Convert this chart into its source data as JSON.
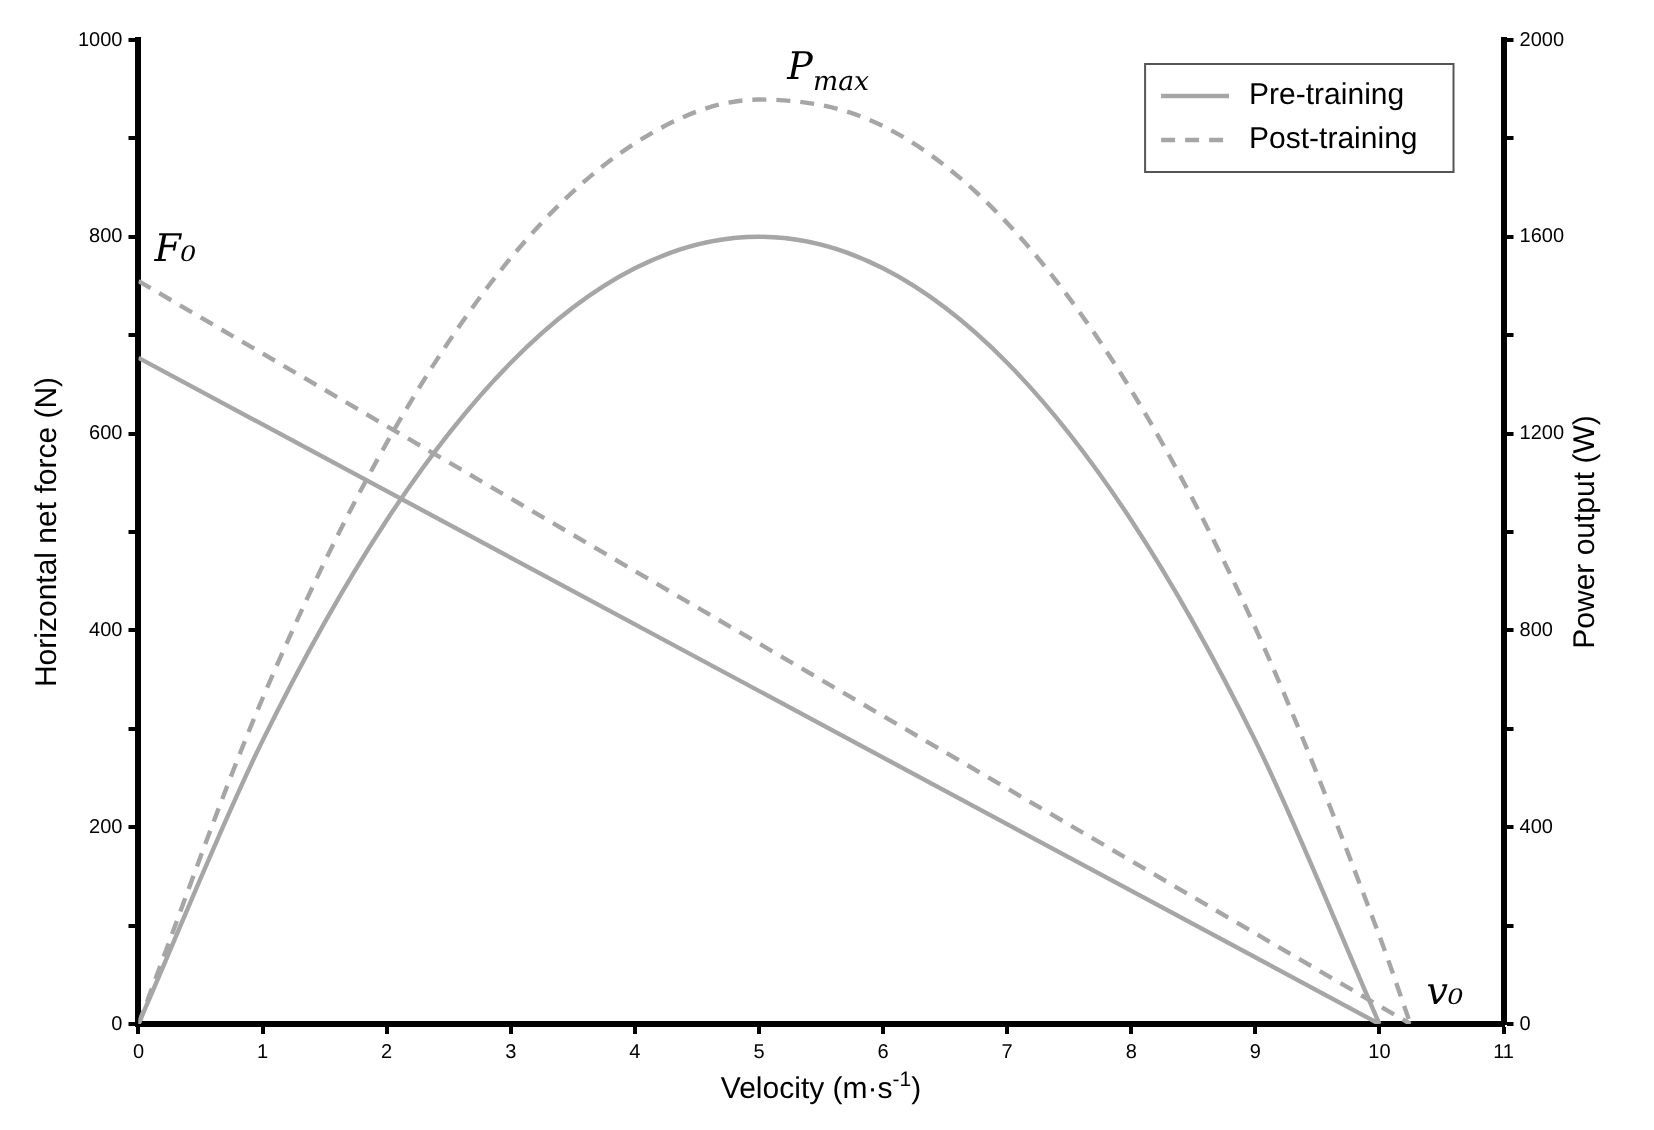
{
  "chart_data": {
    "type": "line",
    "xlabel": "Velocity (m·s$^{-1}$)",
    "ylabel": "Horizontal net force (N)",
    "y2label": "Power output (W)",
    "series": [
      {
        "name": "Pre-training",
        "color": "#a6a6a6",
        "line_style": "solid",
        "x": [
          0,
          10
        ],
        "values": [
          677,
          0
        ]
      },
      {
        "name": "Post-training",
        "color": "#a6a6a6",
        "line_style": "dashed",
        "x": [
          0,
          10.25
        ],
        "values": [
          755,
          0
        ]
      },
      {
        "color": "#a6a6a6",
        "line_style": "solid",
        "axis": "y2",
        "x": [
          0,
          1,
          2,
          3,
          4,
          5,
          6,
          7,
          8,
          9,
          10
        ],
        "values": [
          0,
          576,
          1024,
          1344,
          1536,
          1600,
          1536,
          1344,
          1024,
          576,
          0
        ]
      },
      {
        "color": "#a6a6a6",
        "line_style": "dashed",
        "axis": "y2",
        "x": [
          0,
          1,
          2,
          3,
          4,
          5,
          6,
          7,
          8,
          9,
          10,
          10.25
        ],
        "values": [
          0,
          662,
          1181,
          1557,
          1790,
          1879,
          1825,
          1628,
          1288,
          805,
          179,
          0
        ]
      }
    ],
    "xlim": [
      0,
      11
    ],
    "xticks": [
      0,
      1,
      2,
      3,
      4,
      5,
      6,
      7,
      8,
      9,
      10,
      11
    ],
    "ylim": [
      0,
      1000
    ],
    "yticks": [
      0,
      {
        "value": 100,
        "label": null
      },
      200,
      {
        "value": 300,
        "label": null
      },
      400,
      {
        "value": 500,
        "label": null
      },
      600,
      {
        "value": 700,
        "label": null
      },
      800,
      {
        "value": 900,
        "label": null
      },
      1000
    ],
    "y2lim": [
      0,
      2000
    ],
    "y2ticks": [
      0,
      {
        "value": 200,
        "label": null
      },
      400,
      {
        "value": 600,
        "label": null
      },
      800,
      {
        "value": 1000,
        "label": null
      },
      1200,
      {
        "value": 1400,
        "label": null
      },
      1600,
      {
        "value": 1800,
        "label": null
      },
      2000
    ],
    "annotations": [
      {
        "text": "F₀",
        "x": 0,
        "y": 755
      },
      {
        "text": "P$_{max}$",
        "x": 5.1,
        "y": 940
      },
      {
        "text": "v₀",
        "x": 10.25,
        "y": 0
      }
    ],
    "legend": "top right",
    "grid": false,
    "marker": "none"
  }
}
